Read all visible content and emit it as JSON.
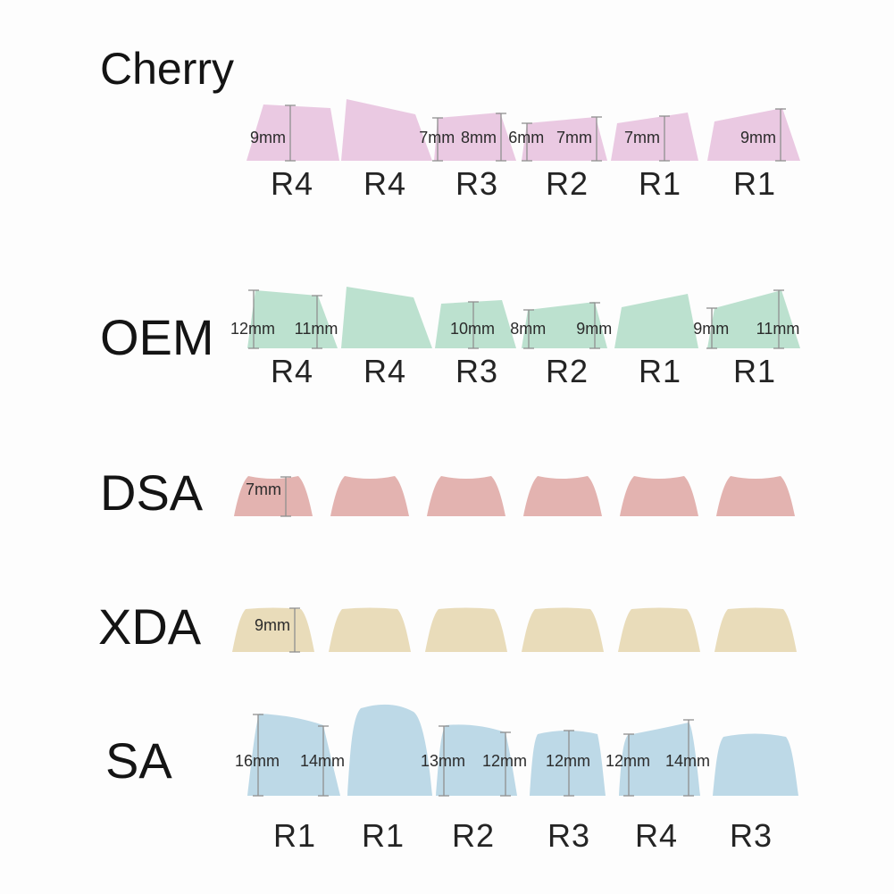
{
  "diagram": "keycap-profile-height-comparison",
  "measurement_unit": "mm",
  "line_color": "#8f8f8f",
  "background": "#fdfdfd",
  "profiles": [
    {
      "name": "Cherry",
      "color": "#eac9e2",
      "keycaps": [
        {
          "row": "R4",
          "measurements": [
            "9mm"
          ]
        },
        {
          "row": "R4",
          "measurements": []
        },
        {
          "row": "R3",
          "measurements": [
            "7mm",
            "8mm"
          ]
        },
        {
          "row": "R2",
          "measurements": [
            "6mm",
            "7mm"
          ]
        },
        {
          "row": "R1",
          "measurements": [
            "7mm"
          ]
        },
        {
          "row": "R1",
          "measurements": [
            "9mm"
          ]
        }
      ]
    },
    {
      "name": "OEM",
      "color": "#bce1cf",
      "keycaps": [
        {
          "row": "R4",
          "measurements": [
            "12mm",
            "11mm"
          ]
        },
        {
          "row": "R4",
          "measurements": []
        },
        {
          "row": "R3",
          "measurements": [
            "10mm"
          ]
        },
        {
          "row": "R2",
          "measurements": [
            "8mm",
            "9mm"
          ]
        },
        {
          "row": "R1",
          "measurements": []
        },
        {
          "row": "R1",
          "measurements": [
            "9mm",
            "11mm"
          ]
        }
      ]
    },
    {
      "name": "DSA",
      "color": "#e3b3b0",
      "keycaps": [
        {
          "row": "",
          "measurements": [
            "7mm"
          ]
        },
        {
          "row": "",
          "measurements": []
        },
        {
          "row": "",
          "measurements": []
        },
        {
          "row": "",
          "measurements": []
        },
        {
          "row": "",
          "measurements": []
        },
        {
          "row": "",
          "measurements": []
        }
      ]
    },
    {
      "name": "XDA",
      "color": "#e9dcba",
      "keycaps": [
        {
          "row": "",
          "measurements": [
            "9mm"
          ]
        },
        {
          "row": "",
          "measurements": []
        },
        {
          "row": "",
          "measurements": []
        },
        {
          "row": "",
          "measurements": []
        },
        {
          "row": "",
          "measurements": []
        },
        {
          "row": "",
          "measurements": []
        }
      ]
    },
    {
      "name": "SA",
      "color": "#bdd9e7",
      "keycaps": [
        {
          "row": "R1",
          "measurements": [
            "16mm",
            "14mm"
          ]
        },
        {
          "row": "R1",
          "measurements": []
        },
        {
          "row": "R2",
          "measurements": [
            "13mm",
            "12mm"
          ]
        },
        {
          "row": "R3",
          "measurements": [
            "12mm"
          ]
        },
        {
          "row": "R4",
          "measurements": [
            "12mm",
            "14mm"
          ]
        },
        {
          "row": "R3",
          "measurements": []
        }
      ]
    }
  ]
}
